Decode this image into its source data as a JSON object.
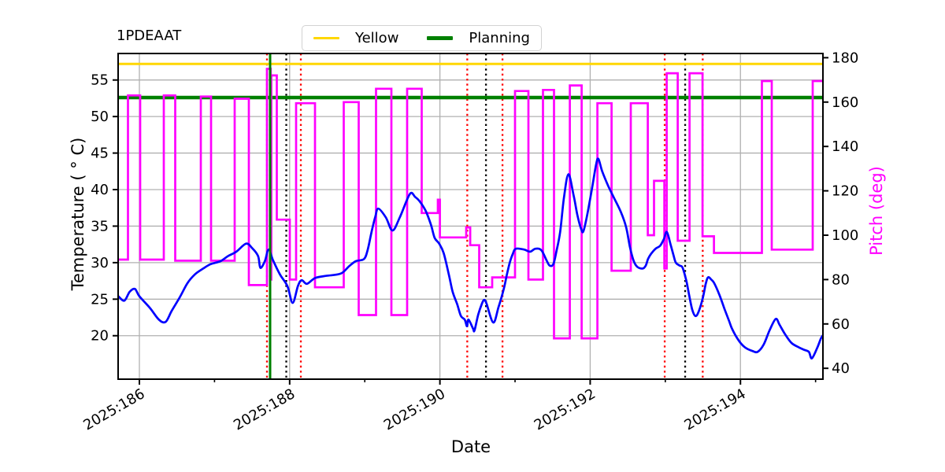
{
  "title": "1PDEAAT",
  "legend": {
    "entries": [
      {
        "label": "Yellow",
        "color": "#ffd700",
        "lw": 3
      },
      {
        "label": "Planning",
        "color": "#008000",
        "lw": 5
      }
    ]
  },
  "chart_data": {
    "type": "line",
    "title": "1PDEAAT",
    "xlabel": "Date",
    "x_axis": {
      "range_days": [
        185.717,
        195.098
      ],
      "major_ticks": [
        {
          "day": 186,
          "label": "2025:186"
        },
        {
          "day": 188,
          "label": "2025:188"
        },
        {
          "day": 190,
          "label": "2025:190"
        },
        {
          "day": 192,
          "label": "2025:192"
        },
        {
          "day": 194,
          "label": "2025:194"
        }
      ],
      "minor_tick_days": [
        187,
        189,
        191,
        193,
        195
      ],
      "grid": "major-only",
      "tick_label_rotation_deg": 30
    },
    "y_left": {
      "label": "Temperature ( ° C)",
      "range": [
        14.05,
        58.63
      ],
      "ticks": [
        20,
        25,
        30,
        35,
        40,
        45,
        50,
        55
      ],
      "grid": true,
      "color": "#000000"
    },
    "y_right": {
      "label": "Pitch (deg)",
      "range": [
        35.1,
        181.9
      ],
      "ticks": [
        40,
        60,
        80,
        100,
        120,
        140,
        160,
        180
      ],
      "grid": false,
      "color": "#ff00ff"
    },
    "hlines": [
      {
        "name": "Yellow",
        "temp": 57.2,
        "color": "#ffd700",
        "lw": 3
      },
      {
        "name": "Planning",
        "temp": 52.6,
        "color": "#008000",
        "lw": 4.5
      }
    ],
    "vlines": [
      {
        "day": 187.698,
        "color": "#ff0000",
        "style": "dotted"
      },
      {
        "day": 187.74,
        "color": "#008000",
        "style": "solid"
      },
      {
        "day": 187.955,
        "color": "#000000",
        "style": "dotted"
      },
      {
        "day": 188.149,
        "color": "#ff0000",
        "style": "dotted"
      },
      {
        "day": 190.364,
        "color": "#ff0000",
        "style": "dotted"
      },
      {
        "day": 190.613,
        "color": "#000000",
        "style": "dotted"
      },
      {
        "day": 190.833,
        "color": "#ff0000",
        "style": "dotted"
      },
      {
        "day": 192.992,
        "color": "#ff0000",
        "style": "dotted"
      },
      {
        "day": 193.264,
        "color": "#000000",
        "style": "dotted"
      },
      {
        "day": 193.498,
        "color": "#ff0000",
        "style": "dotted"
      }
    ],
    "series": [
      {
        "name": "temperature",
        "axis": "left",
        "color": "#0000ff",
        "lw": 2.7,
        "style": "line",
        "points": [
          [
            185.72,
            25.4
          ],
          [
            185.8,
            24.8
          ],
          [
            185.87,
            26.0
          ],
          [
            185.94,
            26.4
          ],
          [
            186.0,
            25.4
          ],
          [
            186.14,
            23.8
          ],
          [
            186.26,
            22.2
          ],
          [
            186.35,
            21.9
          ],
          [
            186.43,
            23.4
          ],
          [
            186.54,
            25.3
          ],
          [
            186.64,
            27.2
          ],
          [
            186.74,
            28.4
          ],
          [
            186.85,
            29.2
          ],
          [
            186.95,
            29.8
          ],
          [
            187.08,
            30.2
          ],
          [
            187.18,
            30.9
          ],
          [
            187.29,
            31.5
          ],
          [
            187.42,
            32.6
          ],
          [
            187.5,
            32.0
          ],
          [
            187.58,
            30.9
          ],
          [
            187.61,
            29.3
          ],
          [
            187.67,
            30.2
          ],
          [
            187.72,
            31.8
          ],
          [
            187.78,
            30.3
          ],
          [
            187.87,
            28.4
          ],
          [
            187.97,
            26.8
          ],
          [
            188.04,
            24.5
          ],
          [
            188.11,
            26.8
          ],
          [
            188.16,
            27.6
          ],
          [
            188.23,
            27.1
          ],
          [
            188.34,
            27.9
          ],
          [
            188.49,
            28.2
          ],
          [
            188.68,
            28.5
          ],
          [
            188.79,
            29.5
          ],
          [
            188.88,
            30.2
          ],
          [
            188.99,
            30.5
          ],
          [
            189.04,
            31.8
          ],
          [
            189.09,
            34.2
          ],
          [
            189.14,
            36.3
          ],
          [
            189.18,
            37.4
          ],
          [
            189.28,
            36.2
          ],
          [
            189.37,
            34.4
          ],
          [
            189.47,
            36.3
          ],
          [
            189.6,
            39.4
          ],
          [
            189.67,
            39.0
          ],
          [
            189.73,
            38.4
          ],
          [
            189.81,
            37.1
          ],
          [
            189.88,
            35.2
          ],
          [
            189.93,
            33.4
          ],
          [
            189.99,
            32.6
          ],
          [
            190.05,
            31.3
          ],
          [
            190.12,
            28.3
          ],
          [
            190.17,
            26.0
          ],
          [
            190.23,
            24.3
          ],
          [
            190.28,
            22.7
          ],
          [
            190.33,
            22.2
          ],
          [
            190.36,
            21.3
          ],
          [
            190.38,
            22.2
          ],
          [
            190.44,
            21.0
          ],
          [
            190.46,
            20.7
          ],
          [
            190.51,
            22.9
          ],
          [
            190.56,
            24.4
          ],
          [
            190.59,
            24.9
          ],
          [
            190.62,
            24.4
          ],
          [
            190.71,
            21.8
          ],
          [
            190.78,
            23.9
          ],
          [
            190.85,
            26.4
          ],
          [
            190.89,
            28.3
          ],
          [
            190.93,
            30.0
          ],
          [
            190.97,
            31.2
          ],
          [
            191.01,
            31.9
          ],
          [
            191.12,
            31.8
          ],
          [
            191.2,
            31.5
          ],
          [
            191.27,
            31.9
          ],
          [
            191.35,
            31.7
          ],
          [
            191.42,
            30.3
          ],
          [
            191.46,
            29.6
          ],
          [
            191.51,
            29.8
          ],
          [
            191.55,
            31.5
          ],
          [
            191.6,
            34.2
          ],
          [
            191.65,
            38.8
          ],
          [
            191.71,
            42.1
          ],
          [
            191.78,
            39.2
          ],
          [
            191.83,
            36.5
          ],
          [
            191.88,
            34.6
          ],
          [
            191.91,
            34.3
          ],
          [
            191.96,
            36.5
          ],
          [
            192.03,
            40.5
          ],
          [
            192.08,
            43.5
          ],
          [
            192.11,
            44.2
          ],
          [
            192.16,
            42.5
          ],
          [
            192.24,
            40.5
          ],
          [
            192.32,
            38.8
          ],
          [
            192.41,
            36.9
          ],
          [
            192.48,
            34.8
          ],
          [
            192.53,
            32.1
          ],
          [
            192.58,
            30.2
          ],
          [
            192.63,
            29.4
          ],
          [
            192.7,
            29.2
          ],
          [
            192.74,
            29.6
          ],
          [
            192.77,
            30.5
          ],
          [
            192.81,
            31.2
          ],
          [
            192.87,
            31.9
          ],
          [
            192.93,
            32.3
          ],
          [
            192.98,
            33.2
          ],
          [
            193.02,
            34.2
          ],
          [
            193.07,
            32.5
          ],
          [
            193.11,
            31.0
          ],
          [
            193.14,
            30.0
          ],
          [
            193.19,
            29.6
          ],
          [
            193.23,
            29.3
          ],
          [
            193.28,
            27.5
          ],
          [
            193.32,
            25.4
          ],
          [
            193.36,
            23.5
          ],
          [
            193.4,
            22.7
          ],
          [
            193.44,
            23.2
          ],
          [
            193.5,
            25.2
          ],
          [
            193.54,
            27.2
          ],
          [
            193.57,
            28.0
          ],
          [
            193.61,
            27.7
          ],
          [
            193.65,
            27.2
          ],
          [
            193.72,
            25.6
          ],
          [
            193.79,
            23.6
          ],
          [
            193.85,
            22.0
          ],
          [
            193.89,
            20.9
          ],
          [
            193.98,
            19.3
          ],
          [
            194.06,
            18.4
          ],
          [
            194.16,
            17.9
          ],
          [
            194.23,
            17.8
          ],
          [
            194.31,
            18.8
          ],
          [
            194.39,
            20.8
          ],
          [
            194.47,
            22.3
          ],
          [
            194.52,
            21.5
          ],
          [
            194.6,
            20.1
          ],
          [
            194.68,
            19.0
          ],
          [
            194.76,
            18.5
          ],
          [
            194.84,
            18.1
          ],
          [
            194.91,
            17.8
          ],
          [
            194.95,
            16.9
          ],
          [
            195.02,
            18.3
          ],
          [
            195.07,
            19.6
          ],
          [
            195.1,
            20.1
          ]
        ]
      },
      {
        "name": "pitch",
        "axis": "right",
        "color": "#ff00ff",
        "lw": 2.7,
        "style": "step",
        "steps": [
          [
            185.717,
            185.848,
            89
          ],
          [
            185.848,
            186.01,
            163
          ],
          [
            186.01,
            186.325,
            89
          ],
          [
            186.325,
            186.477,
            163
          ],
          [
            186.477,
            186.818,
            88.5
          ],
          [
            186.818,
            186.954,
            162.5
          ],
          [
            186.954,
            187.268,
            88.5
          ],
          [
            187.268,
            187.457,
            161.5
          ],
          [
            187.457,
            187.698,
            77.5
          ],
          [
            187.698,
            187.748,
            175
          ],
          [
            187.748,
            187.756,
            80
          ],
          [
            187.756,
            187.829,
            172
          ],
          [
            187.829,
            188.002,
            107
          ],
          [
            188.002,
            188.086,
            80
          ],
          [
            188.086,
            188.337,
            159.5
          ],
          [
            188.337,
            188.72,
            76.5
          ],
          [
            188.72,
            188.919,
            160
          ],
          [
            188.919,
            189.15,
            64
          ],
          [
            189.15,
            189.354,
            166
          ],
          [
            189.354,
            189.564,
            64
          ],
          [
            189.564,
            189.758,
            166
          ],
          [
            189.758,
            189.973,
            110
          ],
          [
            189.973,
            190.0,
            116
          ],
          [
            190.0,
            190.35,
            99
          ],
          [
            190.35,
            190.403,
            103.5
          ],
          [
            190.403,
            190.523,
            95.5
          ],
          [
            190.523,
            190.696,
            76.5
          ],
          [
            190.696,
            191.0,
            81
          ],
          [
            191.0,
            191.178,
            165
          ],
          [
            191.178,
            191.372,
            80
          ],
          [
            191.372,
            191.519,
            165.5
          ],
          [
            191.519,
            191.729,
            53.5
          ],
          [
            191.729,
            191.886,
            167.5
          ],
          [
            191.886,
            192.096,
            53.5
          ],
          [
            192.096,
            192.285,
            159.5
          ],
          [
            192.285,
            192.541,
            84
          ],
          [
            192.541,
            192.767,
            159.5
          ],
          [
            192.767,
            192.85,
            100
          ],
          [
            192.85,
            192.987,
            124.5
          ],
          [
            192.987,
            193.018,
            85
          ],
          [
            193.018,
            193.165,
            173
          ],
          [
            193.165,
            193.322,
            97.5
          ],
          [
            193.322,
            193.495,
            173
          ],
          [
            193.495,
            193.647,
            99.5
          ],
          [
            193.647,
            194.286,
            92
          ],
          [
            194.286,
            194.417,
            169.5
          ],
          [
            194.417,
            194.962,
            93.5
          ],
          [
            194.962,
            195.098,
            169.5
          ]
        ]
      }
    ]
  }
}
